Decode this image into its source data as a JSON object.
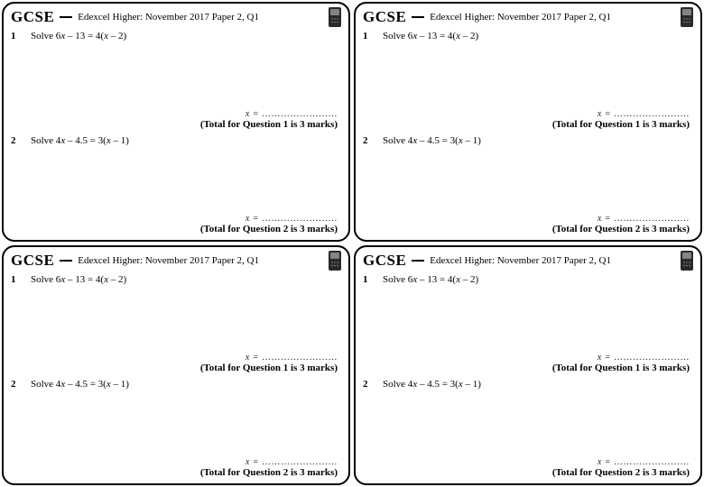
{
  "brand": "GCSE",
  "title": "Edexcel Higher: November 2017 Paper 2, Q1",
  "q1": {
    "num": "1",
    "text_a": "Solve 6",
    "var1": "x",
    "text_b": " – 13 = 4(",
    "var2": "x",
    "text_c": " – 2)"
  },
  "q2": {
    "num": "2",
    "text_a": "Solve 4",
    "var1": "x",
    "text_b": " – 4.5 = 3(",
    "var2": "x",
    "text_c": " – 1)"
  },
  "answer_prefix": "x = ",
  "answer_blank": "……………………",
  "total1": "(Total for Question 1 is 3 marks)",
  "total2": "(Total for Question 2 is 3 marks)"
}
